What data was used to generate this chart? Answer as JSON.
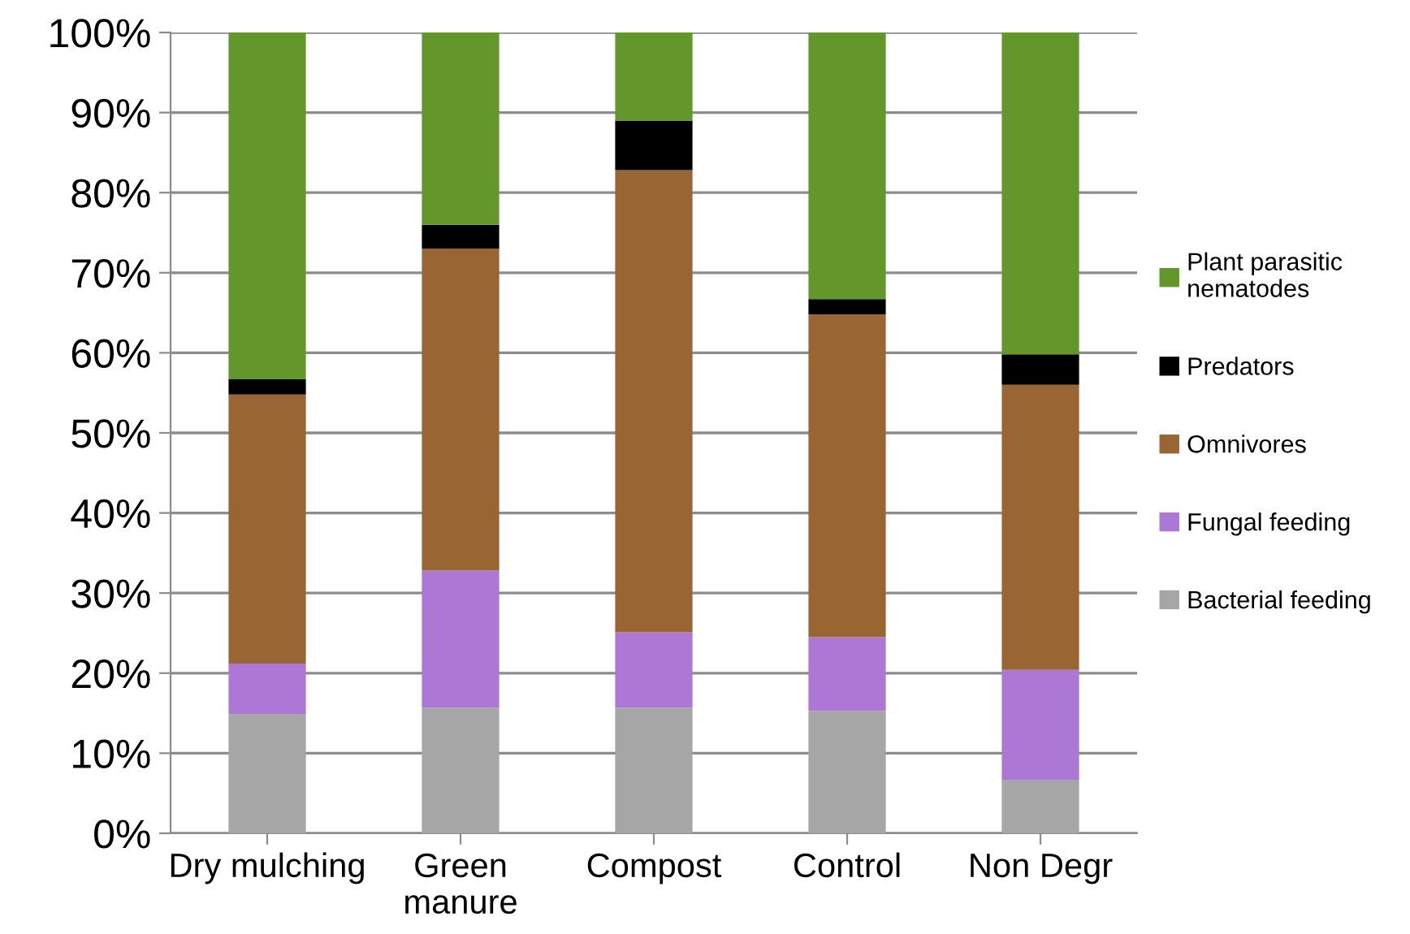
{
  "chart_data": {
    "type": "bar",
    "stacked": true,
    "categories": [
      "Dry mulching",
      "Green\nmanure",
      "Compost",
      "Control",
      "Non Degr"
    ],
    "series": [
      {
        "name": "Bacterial feeding",
        "color": "#a6a6a6",
        "values": [
          14.9,
          15.7,
          15.7,
          15.3,
          6.7
        ]
      },
      {
        "name": "Fungal feeding",
        "color": "#ad77d5",
        "values": [
          6.3,
          17.1,
          9.4,
          9.2,
          13.7
        ]
      },
      {
        "name": "Omnivores",
        "color": "#996633",
        "values": [
          33.6,
          40.2,
          57.7,
          40.3,
          35.6
        ]
      },
      {
        "name": "Predators",
        "color": "#000000",
        "values": [
          1.9,
          3.0,
          6.2,
          1.9,
          3.8
        ]
      },
      {
        "name": "Plant parasitic\nnematodes",
        "color": "#64972b",
        "values": [
          43.3,
          24.0,
          11.0,
          33.3,
          40.2
        ]
      }
    ],
    "ylim": [
      0,
      100
    ],
    "yticks": [
      {
        "value": 0,
        "label": "0%"
      },
      {
        "value": 10,
        "label": "10%"
      },
      {
        "value": 20,
        "label": "20%"
      },
      {
        "value": 30,
        "label": "30%"
      },
      {
        "value": 40,
        "label": "40%"
      },
      {
        "value": 50,
        "label": "50%"
      },
      {
        "value": 60,
        "label": "60%"
      },
      {
        "value": 70,
        "label": "70%"
      },
      {
        "value": 80,
        "label": "80%"
      },
      {
        "value": 90,
        "label": "90%"
      },
      {
        "value": 100,
        "label": "100%"
      }
    ],
    "grid": "y",
    "legend": "right"
  }
}
